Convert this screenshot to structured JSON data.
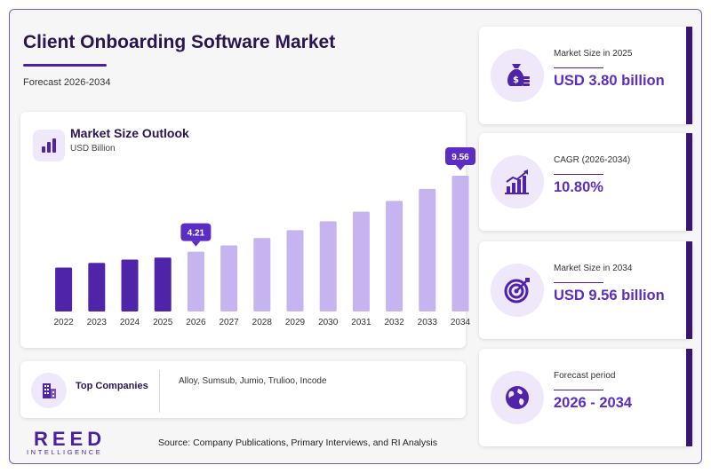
{
  "header": {
    "title": "Client Onboarding Software Market",
    "subtitle": "Forecast 2026-2034"
  },
  "chart_card": {
    "title": "Market Size Outlook",
    "unit": "USD Billion"
  },
  "chart_data": {
    "type": "bar",
    "title": "Market Size Outlook",
    "ylabel": "USD Billion",
    "categories": [
      "2022",
      "2023",
      "2024",
      "2025",
      "2026",
      "2027",
      "2028",
      "2029",
      "2030",
      "2031",
      "2032",
      "2033",
      "2034"
    ],
    "values": [
      3.09,
      3.42,
      3.66,
      3.8,
      4.21,
      4.66,
      5.17,
      5.73,
      6.35,
      7.03,
      7.79,
      8.63,
      9.56
    ],
    "historical_color": "#4f24a8",
    "forecast_color": "#c5b4ef",
    "callouts": [
      {
        "category": "2026",
        "label": "4.21"
      },
      {
        "category": "2034",
        "label": "9.56"
      }
    ],
    "callout_color": "#5b2dc4",
    "ylim": [
      0,
      10
    ],
    "grid": false
  },
  "companies": {
    "label": "Top Companies",
    "list": "Alloy, Sumsub, Jumio, Trulioo, Incode"
  },
  "logo": {
    "word": "REED",
    "sub": "INTELLIGENCE"
  },
  "source": "Source: Company Publications, Primary Interviews, and RI Analysis",
  "stats": [
    {
      "label": "Market Size in 2025",
      "value": "USD 3.80 billion",
      "icon": "money-bag-icon"
    },
    {
      "label": "CAGR (2026-2034)",
      "value": "10.80%",
      "icon": "growth-chart-icon"
    },
    {
      "label": "Market Size in 2034",
      "value": "USD 9.56 billion",
      "icon": "target-icon"
    },
    {
      "label": "Forecast period",
      "value": "2026 - 2034",
      "icon": "globe-icon"
    }
  ],
  "colors": {
    "brand": "#4a22a0",
    "accent": "#5b2dc4",
    "title": "#2a1452",
    "icon_bg": "#efe7fa"
  }
}
